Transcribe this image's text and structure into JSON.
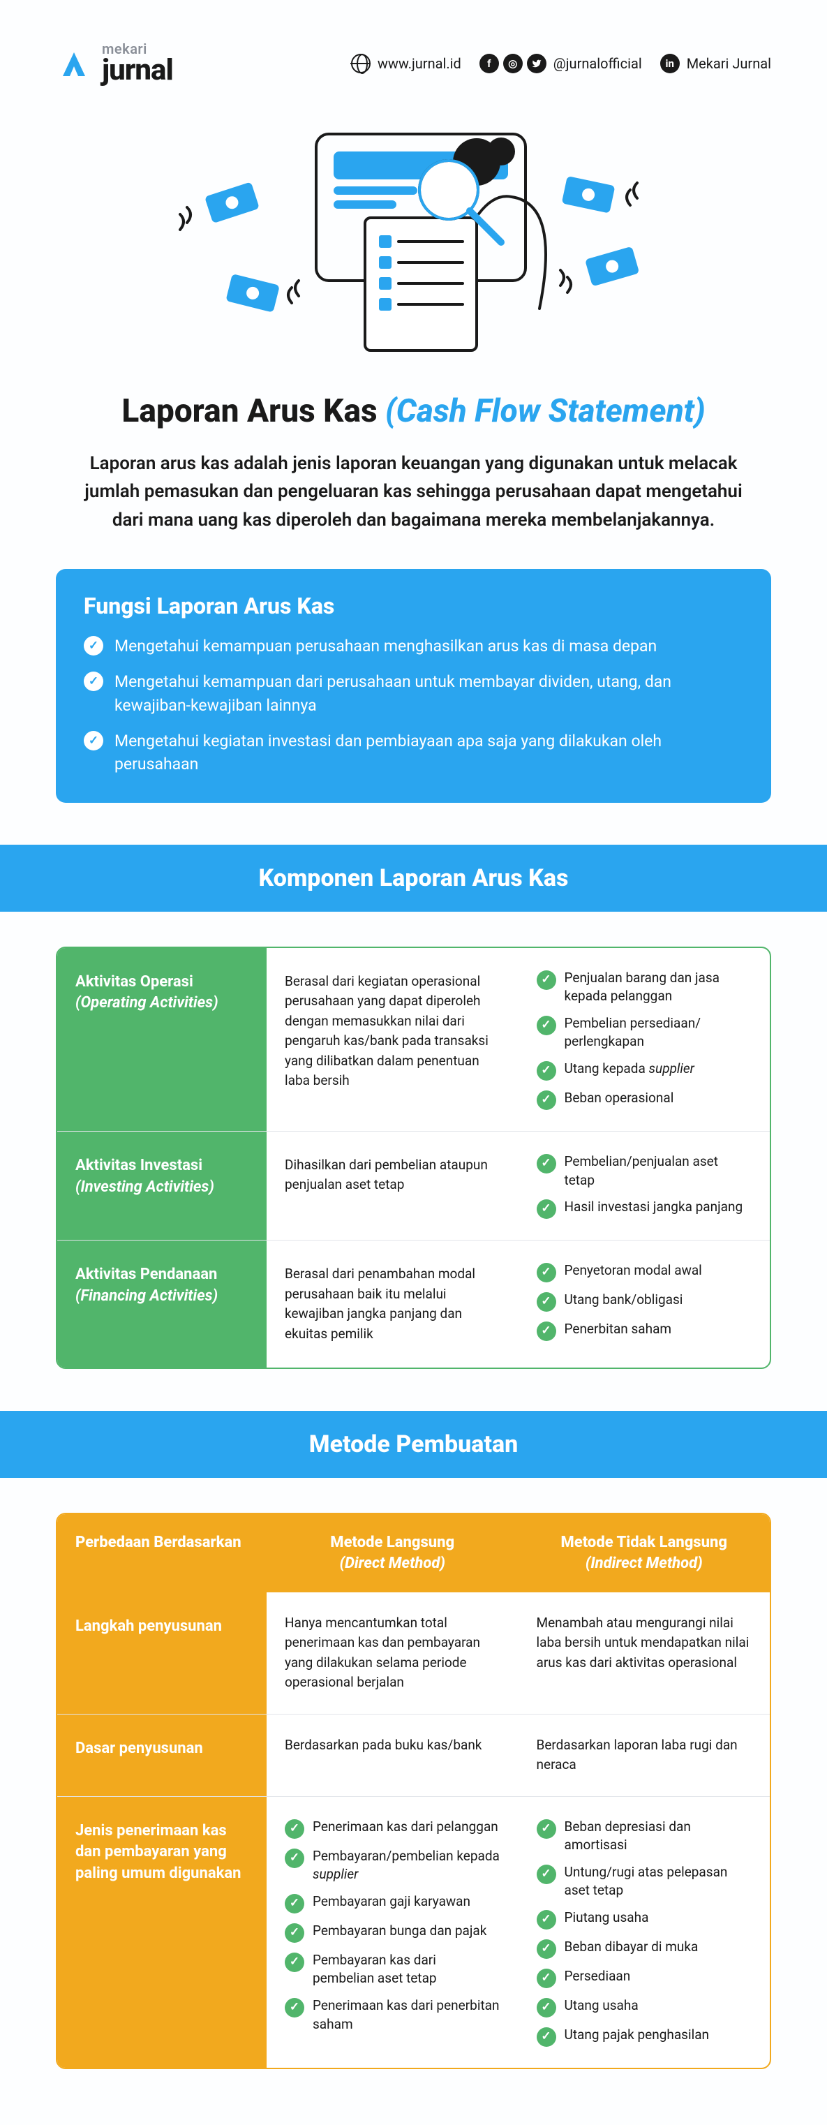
{
  "colors": {
    "brand_blue": "#2aa5ef",
    "green": "#51b56b",
    "orange": "#f2a91e",
    "bg": "#f5fbff",
    "text": "#1a1a1a",
    "muted": "#8a8f98"
  },
  "logo": {
    "top": "mekari",
    "bottom": "jurnal"
  },
  "social": {
    "web": "www.jurnal.id",
    "handle": "@jurnalofficial",
    "linkedin": "Mekari Jurnal"
  },
  "title_main": "Laporan Arus Kas ",
  "title_accent": "(Cash Flow Statement)",
  "intro": "Laporan arus kas adalah jenis laporan keuangan yang digunakan untuk melacak jumlah pemasukan dan pengeluaran kas sehingga perusahaan dapat mengetahui dari mana uang kas diperoleh dan bagaimana mereka membelanjakannya.",
  "fungsi": {
    "heading": "Fungsi Laporan Arus Kas",
    "items": [
      "Mengetahui kemampuan perusahaan menghasilkan arus kas di masa depan",
      "Mengetahui kemampuan dari perusahaan untuk membayar dividen, utang, dan kewajiban-kewajiban lainnya",
      "Mengetahui kegiatan investasi dan pembiayaan apa saja yang dilakukan oleh perusahaan"
    ]
  },
  "komponen": {
    "heading": "Komponen Laporan Arus Kas",
    "rows": [
      {
        "label": "Aktivitas Operasi",
        "label_en": "(Operating Activities)",
        "desc": "Berasal dari kegiatan operasional perusahaan yang dapat diperoleh dengan memasukkan nilai dari pengaruh kas/bank pada transaksi yang dilibatkan dalam penentuan laba bersih",
        "points": [
          "Penjualan barang dan jasa kepada pelanggan",
          "Pembelian persediaan/ perlengkapan",
          "Utang kepada <em>supplier</em>",
          "Beban operasional"
        ]
      },
      {
        "label": "Aktivitas Investasi",
        "label_en": "(Investing Activities)",
        "desc": "Dihasilkan dari pembelian ataupun penjualan aset tetap",
        "points": [
          "Pembelian/penjualan aset tetap",
          "Hasil investasi jangka panjang"
        ]
      },
      {
        "label": "Aktivitas Pendanaan",
        "label_en": "(Financing Activities)",
        "desc": "Berasal dari penambahan modal perusahaan baik itu melalui kewajiban jangka panjang dan ekuitas pemilik",
        "points": [
          "Penyetoran modal awal",
          "Utang bank/obligasi",
          "Penerbitan saham"
        ]
      }
    ]
  },
  "metode": {
    "heading": "Metode Pembuatan",
    "head": {
      "c1": "Perbedaan Berdasarkan",
      "c2": "Metode Langsung",
      "c2_en": "(Direct Method)",
      "c3": "Metode Tidak Langsung",
      "c3_en": "(Indirect Method)"
    },
    "rows": [
      {
        "label": "Langkah penyusunan",
        "direct": "Hanya mencantumkan total penerimaan kas dan pembayaran yang dilakukan selama periode operasional berjalan",
        "indirect": "Menambah atau mengurangi nilai laba bersih untuk mendapatkan nilai arus kas dari aktivitas operasional"
      },
      {
        "label": "Dasar penyusunan",
        "direct": "Berdasarkan pada buku kas/bank",
        "indirect": "Berdasarkan laporan laba rugi dan neraca"
      },
      {
        "label": "Jenis penerimaan kas dan pembayaran yang paling umum digunakan",
        "direct_list": [
          "Penerimaan kas dari pelanggan",
          "Pembayaran/pembelian kepada <em>supplier</em>",
          "Pembayaran gaji karyawan",
          "Pembayaran bunga dan pajak",
          "Pembayaran kas dari pembelian aset tetap",
          "Penerimaan kas dari penerbitan saham"
        ],
        "indirect_list": [
          "Beban depresiasi dan amortisasi",
          "Untung/rugi atas pelepasan aset tetap",
          "Piutang usaha",
          "Beban dibayar di muka",
          "Persediaan",
          "Utang usaha",
          "Utang pajak penghasilan"
        ]
      }
    ]
  }
}
